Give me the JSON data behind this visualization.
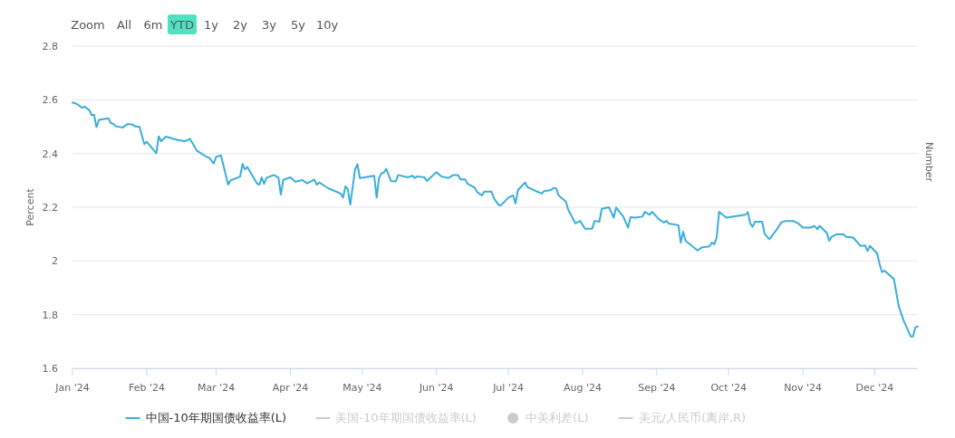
{
  "chart_data": {
    "type": "line",
    "ylabel": "Percent",
    "y2label": "Number",
    "annotations": [
      "Zoom",
      "All",
      "6m",
      "YTD",
      "1y",
      "2y",
      "3y",
      "5y",
      "10y"
    ],
    "series": [
      {
        "name": "中国-10年期国债收益率(L)",
        "color": "#3aaed8",
        "x": [
          "2024-01-01",
          "2024-01-03",
          "2024-01-05",
          "2024-01-06",
          "2024-01-08",
          "2024-01-09",
          "2024-01-10",
          "2024-01-11",
          "2024-01-12",
          "2024-01-16",
          "2024-01-17",
          "2024-01-18",
          "2024-01-19",
          "2024-01-22",
          "2024-01-24",
          "2024-01-26",
          "2024-01-27",
          "2024-01-29",
          "2024-01-31",
          "2024-02-01",
          "2024-02-05",
          "2024-02-06",
          "2024-02-07",
          "2024-02-09",
          "2024-02-14",
          "2024-02-17",
          "2024-02-19",
          "2024-02-22",
          "2024-02-26",
          "2024-02-27",
          "2024-02-29",
          "2024-03-01",
          "2024-03-03",
          "2024-03-06",
          "2024-03-07",
          "2024-03-11",
          "2024-03-12",
          "2024-03-13",
          "2024-03-14",
          "2024-03-18",
          "2024-03-19",
          "2024-03-20",
          "2024-03-21",
          "2024-03-22",
          "2024-03-25",
          "2024-03-27",
          "2024-03-28",
          "2024-03-29",
          "2024-04-01",
          "2024-04-03",
          "2024-04-06",
          "2024-04-08",
          "2024-04-11",
          "2024-04-12",
          "2024-04-13",
          "2024-04-17",
          "2024-04-22",
          "2024-04-23",
          "2024-04-24",
          "2024-04-25",
          "2024-04-26",
          "2024-04-28",
          "2024-04-29",
          "2024-04-30",
          "2024-05-06",
          "2024-05-07",
          "2024-05-08",
          "2024-05-09",
          "2024-05-10",
          "2024-05-11",
          "2024-05-13",
          "2024-05-15",
          "2024-05-16",
          "2024-05-20",
          "2024-05-22",
          "2024-05-23",
          "2024-05-24",
          "2024-05-27",
          "2024-05-28",
          "2024-06-01",
          "2024-06-03",
          "2024-06-06",
          "2024-06-08",
          "2024-06-10",
          "2024-06-11",
          "2024-06-13",
          "2024-06-14",
          "2024-06-17",
          "2024-06-18",
          "2024-06-20",
          "2024-06-21",
          "2024-06-24",
          "2024-06-25",
          "2024-06-27",
          "2024-06-28",
          "2024-07-01",
          "2024-07-03",
          "2024-07-04",
          "2024-07-05",
          "2024-07-08",
          "2024-07-09",
          "2024-07-11",
          "2024-07-13",
          "2024-07-15",
          "2024-07-16",
          "2024-07-18",
          "2024-07-19",
          "2024-07-20",
          "2024-07-21",
          "2024-07-22",
          "2024-07-25",
          "2024-07-26",
          "2024-07-29",
          "2024-07-31",
          "2024-08-02",
          "2024-08-05",
          "2024-08-06",
          "2024-08-08",
          "2024-08-09",
          "2024-08-12",
          "2024-08-14",
          "2024-08-15",
          "2024-08-18",
          "2024-08-20",
          "2024-08-21",
          "2024-08-23",
          "2024-08-26",
          "2024-08-27",
          "2024-08-29",
          "2024-08-30",
          "2024-09-02",
          "2024-09-04",
          "2024-09-05",
          "2024-09-06",
          "2024-09-10",
          "2024-09-11",
          "2024-09-12",
          "2024-09-13",
          "2024-09-18",
          "2024-09-20",
          "2024-09-23",
          "2024-09-24",
          "2024-09-25",
          "2024-09-26",
          "2024-09-27",
          "2024-09-30",
          "2024-10-08",
          "2024-10-09",
          "2024-10-10",
          "2024-10-11",
          "2024-10-12",
          "2024-10-15",
          "2024-10-16",
          "2024-10-18",
          "2024-10-21",
          "2024-10-23",
          "2024-10-25",
          "2024-10-28",
          "2024-10-30",
          "2024-11-01",
          "2024-11-04",
          "2024-11-06",
          "2024-11-07",
          "2024-11-08",
          "2024-11-11",
          "2024-11-12",
          "2024-11-13",
          "2024-11-15",
          "2024-11-18",
          "2024-11-19",
          "2024-11-22",
          "2024-11-25",
          "2024-11-27",
          "2024-11-28",
          "2024-11-29",
          "2024-12-02",
          "2024-12-03",
          "2024-12-04",
          "2024-12-05",
          "2024-12-09",
          "2024-12-11",
          "2024-12-13",
          "2024-12-16",
          "2024-12-17",
          "2024-12-18",
          "2024-12-19"
        ],
        "values": [
          2.59,
          2.584,
          2.57,
          2.575,
          2.562,
          2.543,
          2.545,
          2.498,
          2.525,
          2.531,
          2.513,
          2.511,
          2.502,
          2.497,
          2.51,
          2.508,
          2.502,
          2.499,
          2.435,
          2.444,
          2.401,
          2.464,
          2.446,
          2.463,
          2.45,
          2.446,
          2.455,
          2.41,
          2.388,
          2.385,
          2.363,
          2.388,
          2.393,
          2.284,
          2.3,
          2.314,
          2.361,
          2.341,
          2.35,
          2.289,
          2.284,
          2.311,
          2.287,
          2.309,
          2.32,
          2.311,
          2.247,
          2.302,
          2.311,
          2.295,
          2.301,
          2.289,
          2.303,
          2.284,
          2.292,
          2.27,
          2.251,
          2.236,
          2.278,
          2.266,
          2.21,
          2.341,
          2.36,
          2.309,
          2.317,
          2.236,
          2.309,
          2.326,
          2.329,
          2.343,
          2.298,
          2.296,
          2.32,
          2.311,
          2.317,
          2.309,
          2.315,
          2.311,
          2.298,
          2.331,
          2.315,
          2.309,
          2.32,
          2.32,
          2.304,
          2.304,
          2.287,
          2.273,
          2.256,
          2.244,
          2.258,
          2.258,
          2.233,
          2.208,
          2.208,
          2.236,
          2.244,
          2.214,
          2.264,
          2.292,
          2.275,
          2.267,
          2.258,
          2.251,
          2.261,
          2.262,
          2.266,
          2.272,
          2.27,
          2.244,
          2.221,
          2.191,
          2.14,
          2.149,
          2.12,
          2.12,
          2.149,
          2.146,
          2.194,
          2.2,
          2.161,
          2.199,
          2.165,
          2.124,
          2.163,
          2.161,
          2.165,
          2.183,
          2.172,
          2.183,
          2.154,
          2.143,
          2.149,
          2.139,
          2.133,
          2.068,
          2.109,
          2.075,
          2.039,
          2.051,
          2.054,
          2.068,
          2.062,
          2.087,
          2.183,
          2.161,
          2.172,
          2.182,
          2.14,
          2.127,
          2.146,
          2.146,
          2.101,
          2.081,
          2.116,
          2.144,
          2.149,
          2.149,
          2.14,
          2.124,
          2.124,
          2.13,
          2.118,
          2.131,
          2.104,
          2.075,
          2.09,
          2.099,
          2.099,
          2.09,
          2.087,
          2.056,
          2.058,
          2.037,
          2.056,
          2.028,
          1.989,
          1.958,
          1.964,
          1.933,
          1.832,
          1.779,
          1.719,
          1.719,
          1.753,
          1.756
        ]
      },
      {
        "name": "美国-10年期国债收益率(L)",
        "color": "#cccccc"
      },
      {
        "name": "中美利差(L)",
        "color": "#cccccc",
        "marker": "circle"
      },
      {
        "name": "美元/人民币(离岸,R)",
        "color": "#cccccc"
      }
    ],
    "xlim": [
      "2024-01-01",
      "2024-12-19"
    ],
    "xticks": [
      {
        "value": "2024-01-01",
        "label": "Jan '24"
      },
      {
        "value": "2024-02-01",
        "label": "Feb '24"
      },
      {
        "value": "2024-03-01",
        "label": "Mar '24"
      },
      {
        "value": "2024-04-01",
        "label": "Apr '24"
      },
      {
        "value": "2024-05-01",
        "label": "May '24"
      },
      {
        "value": "2024-06-01",
        "label": "Jun '24"
      },
      {
        "value": "2024-07-01",
        "label": "Jul '24"
      },
      {
        "value": "2024-08-01",
        "label": "Aug '24"
      },
      {
        "value": "2024-09-01",
        "label": "Sep '24"
      },
      {
        "value": "2024-10-01",
        "label": "Oct '24"
      },
      {
        "value": "2024-11-01",
        "label": "Nov '24"
      },
      {
        "value": "2024-12-01",
        "label": "Dec '24"
      }
    ],
    "ylim": [
      1.6,
      2.8
    ],
    "yticks": [
      1.6,
      1.8,
      2,
      2.2,
      2.4,
      2.6,
      2.8
    ],
    "grid": "y",
    "legend": "bottom",
    "marker": "none",
    "line_style": "solid"
  }
}
